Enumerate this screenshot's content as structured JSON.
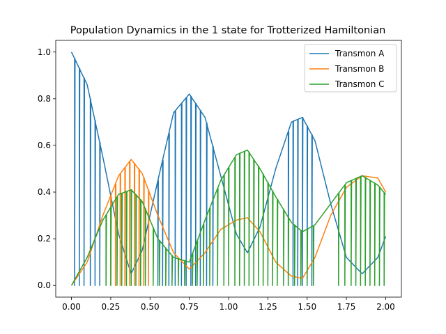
{
  "chart_data": {
    "type": "line",
    "title": "Population Dynamics in the 1 state for Trotterized Hamiltonian",
    "xlabel": "",
    "ylabel": "",
    "xlim": [
      -0.1,
      2.1
    ],
    "ylim": [
      -0.05,
      1.05
    ],
    "x_ticks": [
      "0.00",
      "0.25",
      "0.50",
      "0.75",
      "1.00",
      "1.25",
      "1.50",
      "1.75",
      "2.00"
    ],
    "y_ticks": [
      "0.0",
      "0.2",
      "0.4",
      "0.6",
      "0.8",
      "1.0"
    ],
    "grid": false,
    "legend_position": "top-right",
    "series": [
      {
        "name": "Transmon A",
        "color": "#1f77b4",
        "envelope_x": [
          0.0,
          0.1,
          0.2,
          0.3,
          0.38,
          0.45,
          0.55,
          0.65,
          0.75,
          0.85,
          0.95,
          1.05,
          1.12,
          1.2,
          1.3,
          1.4,
          1.47,
          1.55,
          1.65,
          1.75,
          1.85,
          1.95,
          2.0
        ],
        "envelope_y": [
          1.0,
          0.86,
          0.55,
          0.22,
          0.05,
          0.15,
          0.45,
          0.74,
          0.82,
          0.72,
          0.47,
          0.22,
          0.14,
          0.25,
          0.5,
          0.7,
          0.72,
          0.62,
          0.35,
          0.12,
          0.05,
          0.12,
          0.21
        ],
        "drops_to_zero_x": [
          0.02,
          0.05,
          0.08,
          0.12,
          0.15,
          0.18,
          0.55,
          0.58,
          0.62,
          0.66,
          0.7,
          0.73,
          0.76,
          0.79,
          0.82,
          0.86,
          0.9,
          1.38,
          1.41,
          1.44,
          1.47,
          1.5,
          1.53
        ]
      },
      {
        "name": "Transmon B",
        "color": "#ff7f0e",
        "envelope_x": [
          0.0,
          0.1,
          0.2,
          0.3,
          0.38,
          0.45,
          0.55,
          0.65,
          0.75,
          0.85,
          0.95,
          1.05,
          1.12,
          1.2,
          1.3,
          1.4,
          1.47,
          1.55,
          1.65,
          1.75,
          1.85,
          1.95,
          2.0
        ],
        "envelope_y": [
          0.0,
          0.1,
          0.3,
          0.47,
          0.54,
          0.48,
          0.3,
          0.14,
          0.07,
          0.14,
          0.24,
          0.28,
          0.29,
          0.23,
          0.1,
          0.04,
          0.03,
          0.12,
          0.3,
          0.42,
          0.47,
          0.46,
          0.4
        ],
        "drops_to_zero_x": [
          0.25,
          0.28,
          0.31,
          0.34,
          0.37,
          0.4,
          0.43,
          0.46,
          0.49
        ]
      },
      {
        "name": "Transmon C",
        "color": "#2ca02c",
        "envelope_x": [
          0.0,
          0.1,
          0.2,
          0.3,
          0.38,
          0.45,
          0.55,
          0.65,
          0.75,
          0.85,
          0.95,
          1.05,
          1.12,
          1.2,
          1.3,
          1.4,
          1.47,
          1.55,
          1.65,
          1.75,
          1.85,
          1.95,
          2.0
        ],
        "envelope_y": [
          0.0,
          0.12,
          0.28,
          0.39,
          0.41,
          0.36,
          0.2,
          0.12,
          0.1,
          0.28,
          0.45,
          0.56,
          0.58,
          0.5,
          0.38,
          0.27,
          0.23,
          0.26,
          0.35,
          0.44,
          0.47,
          0.43,
          0.39
        ],
        "drops_to_zero_x": [
          0.22,
          0.25,
          0.29,
          0.32,
          0.35,
          0.38,
          0.41,
          0.44,
          0.47,
          0.52,
          0.56,
          0.6,
          0.64,
          0.68,
          0.72,
          0.77,
          0.8,
          0.84,
          0.88,
          0.93,
          0.97,
          1.0,
          1.04,
          1.07,
          1.1,
          1.13,
          1.16,
          1.19,
          1.22,
          1.25,
          1.28,
          1.31,
          1.35,
          1.38,
          1.42,
          1.46,
          1.5,
          1.54,
          1.7,
          1.74,
          1.78,
          1.81,
          1.84,
          1.87,
          1.9,
          1.93,
          1.96,
          1.99
        ]
      }
    ]
  }
}
